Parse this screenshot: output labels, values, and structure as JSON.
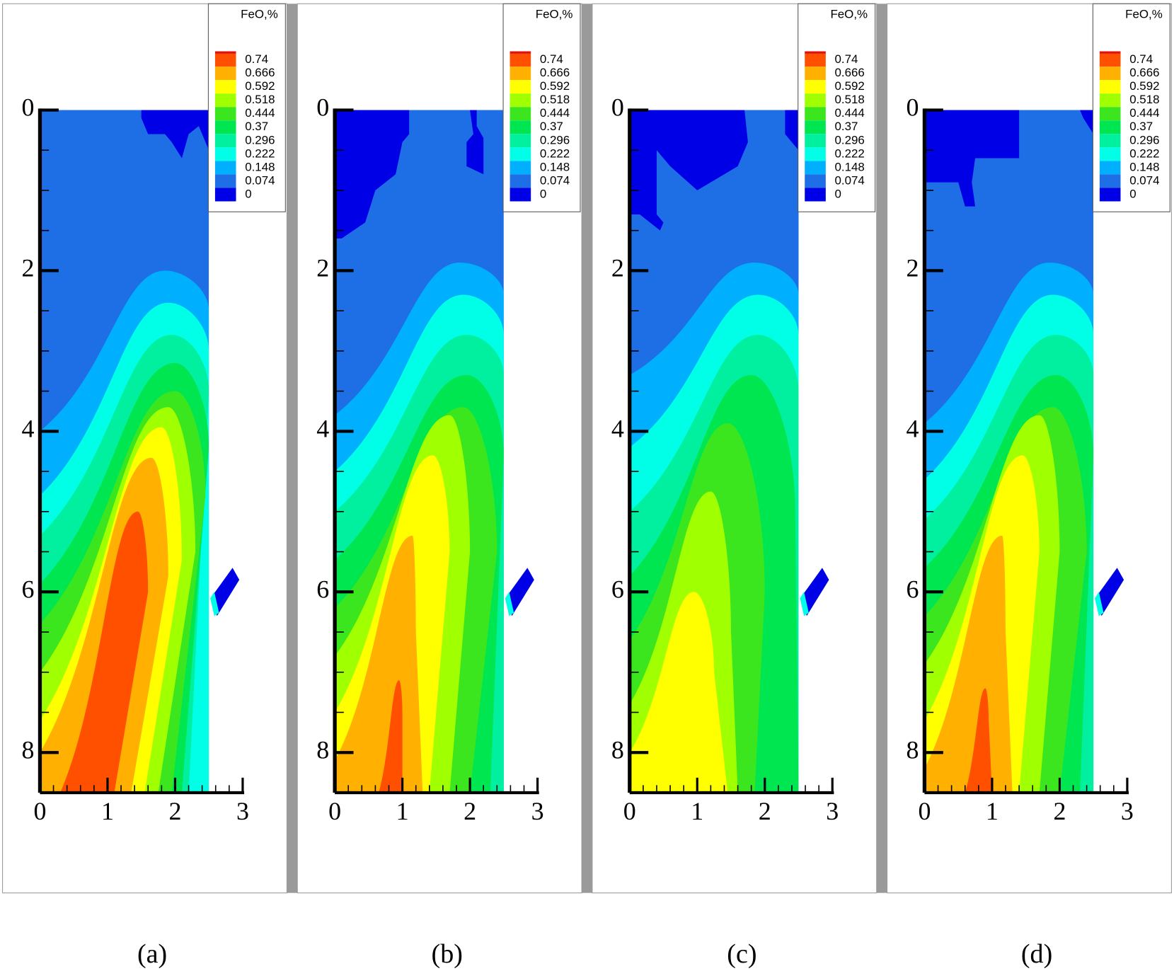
{
  "chart_data": [
    {
      "type": "contour",
      "label": "(a)",
      "legend_title": "FeO,%",
      "levels": [
        0.74,
        0.666,
        0.592,
        0.518,
        0.444,
        0.37,
        0.296,
        0.222,
        0.148,
        0.074,
        0
      ],
      "colors": [
        "#ff5000",
        "#ffb000",
        "#ffff00",
        "#a0ff00",
        "#3ce61e",
        "#00e650",
        "#00f0a0",
        "#00ffe6",
        "#00b0ff",
        "#1e6ee6",
        "#0000e6"
      ],
      "xlim": [
        0,
        3
      ],
      "xticks": [
        0,
        1,
        2,
        3
      ],
      "ylim": [
        0,
        8.5
      ],
      "yticks": [
        0,
        2,
        4,
        6,
        8
      ],
      "y_reversed": true
    },
    {
      "type": "contour",
      "label": "(b)",
      "legend_title": "FeO,%",
      "levels": [
        0.74,
        0.666,
        0.592,
        0.518,
        0.444,
        0.37,
        0.296,
        0.222,
        0.148,
        0.074,
        0
      ],
      "colors": [
        "#ff5000",
        "#ffb000",
        "#ffff00",
        "#a0ff00",
        "#3ce61e",
        "#00e650",
        "#00f0a0",
        "#00ffe6",
        "#00b0ff",
        "#1e6ee6",
        "#0000e6"
      ],
      "xlim": [
        0,
        3
      ],
      "xticks": [
        0,
        1,
        2,
        3
      ],
      "ylim": [
        0,
        8.5
      ],
      "yticks": [
        0,
        2,
        4,
        6,
        8
      ],
      "y_reversed": true
    },
    {
      "type": "contour",
      "label": "(c)",
      "legend_title": "FeO,%",
      "levels": [
        0.74,
        0.666,
        0.592,
        0.518,
        0.444,
        0.37,
        0.296,
        0.222,
        0.148,
        0.074,
        0
      ],
      "colors": [
        "#ff5000",
        "#ffb000",
        "#ffff00",
        "#a0ff00",
        "#3ce61e",
        "#00e650",
        "#00f0a0",
        "#00ffe6",
        "#00b0ff",
        "#1e6ee6",
        "#0000e6"
      ],
      "xlim": [
        0,
        3
      ],
      "xticks": [
        0,
        1,
        2,
        3
      ],
      "ylim": [
        0,
        8.5
      ],
      "yticks": [
        0,
        2,
        4,
        6,
        8
      ],
      "y_reversed": true
    },
    {
      "type": "contour",
      "label": "(d)",
      "legend_title": "FeO,%",
      "levels": [
        0.74,
        0.666,
        0.592,
        0.518,
        0.444,
        0.37,
        0.296,
        0.222,
        0.148,
        0.074,
        0
      ],
      "colors": [
        "#ff5000",
        "#ffb000",
        "#ffff00",
        "#a0ff00",
        "#3ce61e",
        "#00e650",
        "#00f0a0",
        "#00ffe6",
        "#00b0ff",
        "#1e6ee6",
        "#0000e6"
      ],
      "xlim": [
        0,
        3
      ],
      "xticks": [
        0,
        1,
        2,
        3
      ],
      "ylim": [
        0,
        8.5
      ],
      "yticks": [
        0,
        2,
        4,
        6,
        8
      ],
      "y_reversed": true
    }
  ]
}
